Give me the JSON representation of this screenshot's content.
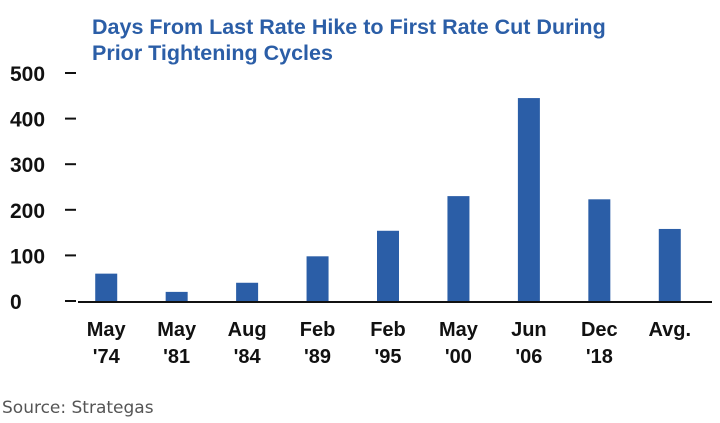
{
  "chart_data": {
    "type": "bar",
    "title_lines": [
      "Days From Last Rate Hike to First Rate Cut During",
      "Prior Tightening Cycles"
    ],
    "categories": [
      [
        "May",
        "'74"
      ],
      [
        "May",
        "'81"
      ],
      [
        "Aug",
        "'84"
      ],
      [
        "Feb",
        "'89"
      ],
      [
        "Feb",
        "'95"
      ],
      [
        "May",
        "'00"
      ],
      [
        "Jun",
        "'06"
      ],
      [
        "Dec",
        "'18"
      ],
      [
        "Avg.",
        ""
      ]
    ],
    "values": [
      60,
      20,
      40,
      98,
      154,
      230,
      445,
      223,
      158
    ],
    "ylim": [
      0,
      500
    ],
    "yticks": [
      0,
      100,
      200,
      300,
      400,
      500
    ],
    "grid": false,
    "bar_color": "#2b5ea7"
  },
  "source": "Source: Strategas"
}
